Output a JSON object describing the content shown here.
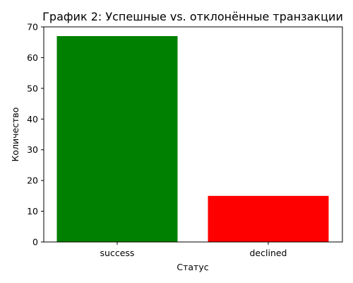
{
  "chart_data": {
    "type": "bar",
    "title": "График 2: Успешные vs. отклонённые транзакции",
    "xlabel": "Статус",
    "ylabel": "Количество",
    "categories": [
      "success",
      "declined"
    ],
    "values": [
      67,
      15
    ],
    "colors": [
      "#008000",
      "#ff0000"
    ],
    "ylim": [
      0,
      70
    ],
    "yticks": [
      0,
      10,
      20,
      30,
      40,
      50,
      60,
      70
    ],
    "grid": false,
    "legend": "none"
  }
}
